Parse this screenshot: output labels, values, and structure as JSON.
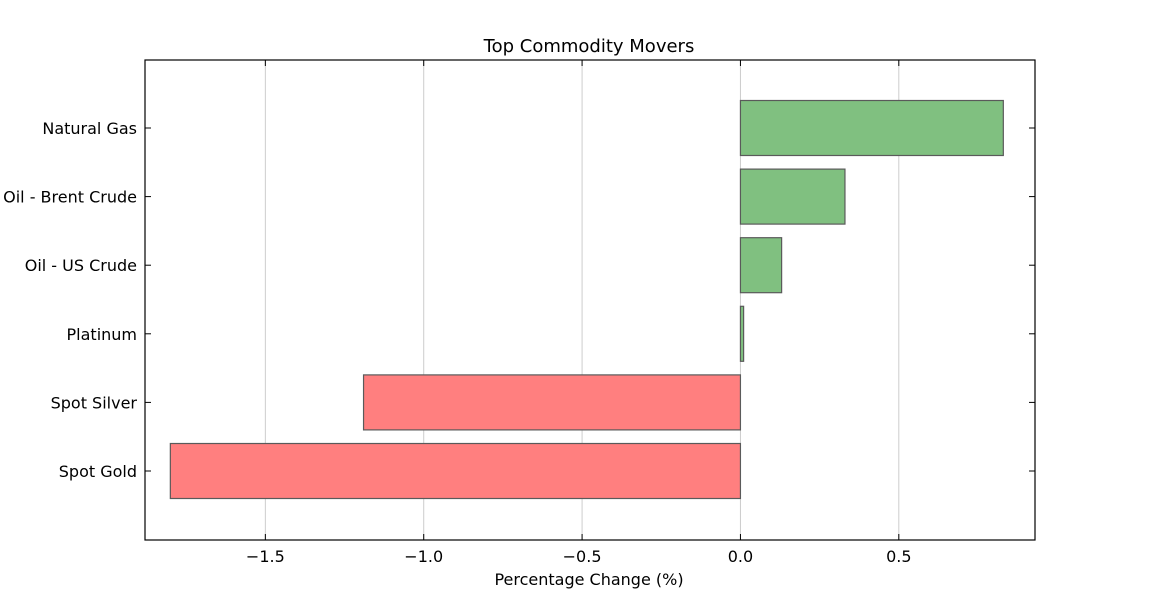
{
  "chart_data": {
    "type": "bar",
    "orientation": "horizontal",
    "title": "Top Commodity Movers",
    "xlabel": "Percentage Change (%)",
    "ylabel": "",
    "xlim": [
      -1.88,
      0.93
    ],
    "xticks": [
      -1.5,
      -1.0,
      -0.5,
      0.0,
      0.5
    ],
    "xtick_labels": [
      "−1.5",
      "−1.0",
      "−0.5",
      "0.0",
      "0.5"
    ],
    "grid": "vertical",
    "categories": [
      "Natural Gas",
      "Oil - Brent Crude",
      "Oil - US Crude",
      "Platinum",
      "Spot Silver",
      "Spot Gold"
    ],
    "values": [
      0.83,
      0.33,
      0.13,
      0.01,
      -1.19,
      -1.8
    ],
    "colors": {
      "positive": "#80c080",
      "negative": "#ff7f7f",
      "bar_edge": "#5a5a5a",
      "grid": "#cccccc"
    }
  }
}
